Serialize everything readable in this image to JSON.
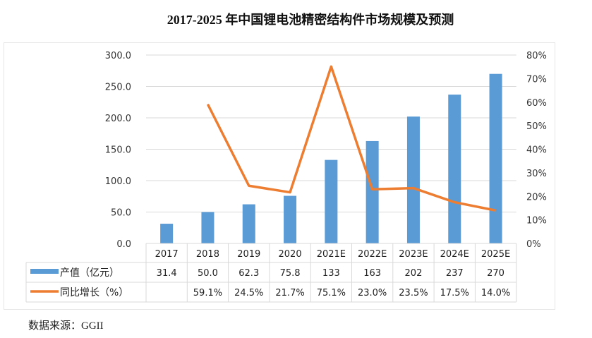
{
  "chart_data": {
    "type": "bar+line",
    "title": "2017-2025 年中国锂电池精密结构件市场规模及预测",
    "categories": [
      "2017",
      "2018",
      "2019",
      "2020",
      "2021E",
      "2022E",
      "2023E",
      "2024E",
      "2025E"
    ],
    "series": [
      {
        "name": "产值（亿元）",
        "type": "bar",
        "axis": "left",
        "color": "#5b9bd5",
        "values": [
          31.4,
          50.0,
          62.3,
          75.8,
          133,
          163,
          202,
          237,
          270
        ],
        "labels": [
          "31.4",
          "50.0",
          "62.3",
          "75.8",
          "133",
          "163",
          "202",
          "237",
          "270"
        ]
      },
      {
        "name": "同比增长（%）",
        "type": "line",
        "axis": "right",
        "color": "#ed7d31",
        "values": [
          null,
          59.1,
          24.5,
          21.7,
          75.1,
          23.0,
          23.5,
          17.5,
          14.0
        ],
        "labels": [
          "",
          "59.1%",
          "24.5%",
          "21.7%",
          "75.1%",
          "23.0%",
          "23.5%",
          "17.5%",
          "14.0%"
        ]
      }
    ],
    "y_left": {
      "range": [
        0,
        300
      ],
      "ticks": [
        "0.0",
        "50.0",
        "100.0",
        "150.0",
        "200.0",
        "250.0",
        "300.0"
      ]
    },
    "y_right": {
      "range": [
        0,
        80
      ],
      "ticks": [
        "0%",
        "10%",
        "20%",
        "30%",
        "40%",
        "50%",
        "60%",
        "70%",
        "80%"
      ]
    },
    "grid": true,
    "legend": "data-table"
  },
  "source": "数据来源：GGII"
}
